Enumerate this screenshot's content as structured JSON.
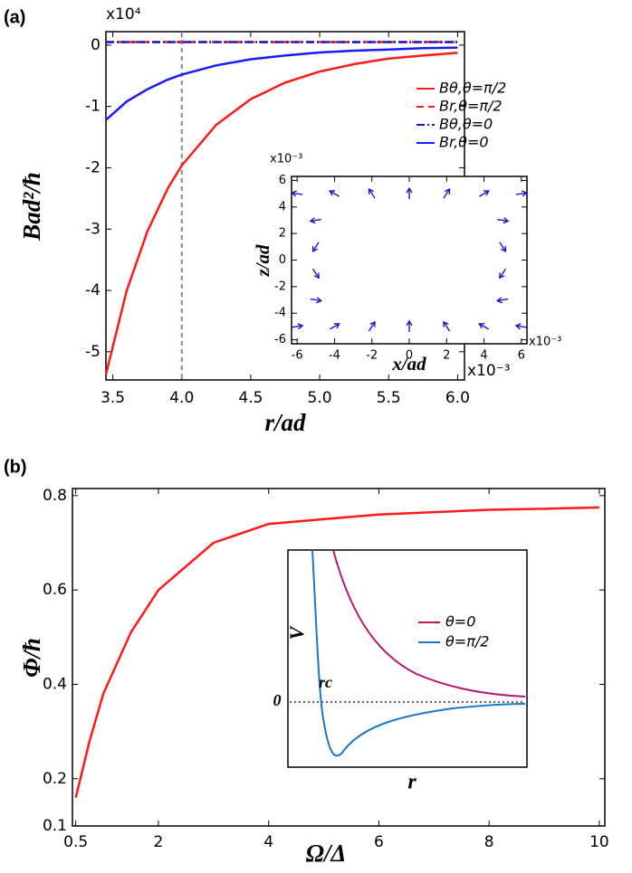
{
  "chart_data": [
    {
      "type": "line",
      "panel_label": "(a)",
      "x_label": "r/ad",
      "y_label": "Bad²/ħ",
      "x_multiplier": "x10⁻³",
      "y_multiplier": "x10⁴",
      "x": [
        3.45,
        3.6,
        3.75,
        3.9,
        4.0,
        4.25,
        4.5,
        4.75,
        5.0,
        5.25,
        5.5,
        5.75,
        6.0
      ],
      "series": [
        {
          "name": "Bθ,θ=π/2",
          "color": "#ff1a1a",
          "style": "solid",
          "values": [
            -5.37,
            -4.01,
            -3.04,
            -2.33,
            -1.96,
            -1.3,
            -0.88,
            -0.61,
            -0.43,
            -0.31,
            -0.22,
            -0.17,
            -0.125
          ]
        },
        {
          "name": "Br,θ=π/2",
          "color": "#ff1a1a",
          "style": "dashed",
          "values": [
            0.05,
            0.05,
            0.05,
            0.05,
            0.05,
            0.05,
            0.05,
            0.05,
            0.05,
            0.05,
            0.05,
            0.05,
            0.05
          ]
        },
        {
          "name": "Bθ,θ=0",
          "color": "#1a1acc",
          "style": "dashdot",
          "values": [
            0.05,
            0.05,
            0.05,
            0.05,
            0.05,
            0.05,
            0.05,
            0.05,
            0.05,
            0.05,
            0.05,
            0.05,
            0.05
          ]
        },
        {
          "name": "Br,θ=0",
          "color": "#1a1aff",
          "style": "solid",
          "values": [
            -1.22,
            -0.92,
            -0.72,
            -0.56,
            -0.48,
            -0.33,
            -0.23,
            -0.17,
            -0.12,
            -0.09,
            -0.07,
            -0.05,
            -0.04
          ]
        }
      ],
      "xlim": [
        3.45,
        6.05
      ],
      "ylim": [
        -5.46,
        0.22
      ],
      "xticks": [
        3.5,
        {
          "value": 4,
          "label": "4.0"
        },
        4.5,
        {
          "value": 5,
          "label": "5.0"
        },
        5.5,
        {
          "value": 6,
          "label": "6.0"
        }
      ],
      "yticks": [
        -5,
        -4,
        -3,
        -2,
        -1,
        0
      ],
      "vline": 4,
      "legend": "upper right",
      "grid": false
    },
    {
      "type": "quiver",
      "x_label": "x/ad",
      "y_label": "z/ad",
      "x_multiplier": "x10⁻³",
      "y_multiplier": "x10⁻³",
      "color": "#1a1acc",
      "x": [
        -6,
        -4,
        -2,
        0,
        2,
        4,
        6,
        -6,
        -4,
        -2,
        0,
        2,
        4,
        6,
        -5,
        -5,
        -5,
        -5,
        5,
        5,
        5,
        5
      ],
      "y": [
        5,
        5,
        5,
        5,
        5,
        5,
        5,
        -5,
        -5,
        -5,
        -5,
        -5,
        -5,
        -5,
        3,
        1,
        -1,
        -3,
        3,
        1,
        -1,
        -3
      ],
      "angle": [
        171,
        150,
        123,
        90,
        57,
        30,
        9,
        9,
        30,
        57,
        90,
        123,
        150,
        171,
        -171,
        -123,
        -57,
        -9,
        -9,
        -57,
        -123,
        -171
      ],
      "xlim": [
        -6.3,
        6.3
      ],
      "ylim": [
        -6.3,
        6.3
      ],
      "xticks": [
        -6,
        -4,
        -2,
        0,
        2,
        4,
        6
      ],
      "yticks": [
        -6,
        -4,
        -2,
        0,
        2,
        4,
        6
      ],
      "grid": false
    },
    {
      "type": "line",
      "panel_label": "(b)",
      "x_label": "Ω/Δ",
      "y_label": "Φ/ħ",
      "x": [
        0.5,
        0.75,
        1,
        1.5,
        2,
        3,
        4,
        5,
        6,
        7,
        8,
        9,
        10
      ],
      "values": [
        0.16,
        0.28,
        0.38,
        0.51,
        0.6,
        0.7,
        0.74,
        0.75,
        0.76,
        0.765,
        0.77,
        0.772,
        0.775
      ],
      "color": "#ff1a1a",
      "xlim": [
        0.44,
        10.1
      ],
      "ylim": [
        0.1,
        0.815
      ],
      "xticks": [
        0.5,
        2,
        4,
        6,
        8,
        10
      ],
      "yticks": [
        0.1,
        0.2,
        0.4,
        0.6,
        0.8
      ],
      "grid": false
    },
    {
      "type": "schematic",
      "x_label": "r",
      "y_label": "V",
      "zero_label": "0",
      "marker_label": "rc",
      "series": [
        {
          "name": "θ=0",
          "color": "#b5176e"
        },
        {
          "name": "θ=π/2",
          "color": "#1f77c4"
        }
      ]
    }
  ]
}
